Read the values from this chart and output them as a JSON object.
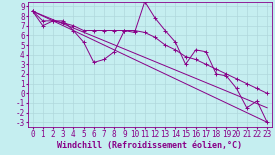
{
  "xlabel": "Windchill (Refroidissement éolien,°C)",
  "background_color": "#c5eef0",
  "grid_color": "#b0d8dc",
  "line_color": "#880088",
  "xlim": [
    -0.5,
    23.5
  ],
  "ylim": [
    -3.5,
    9.5
  ],
  "xticks": [
    0,
    1,
    2,
    3,
    4,
    5,
    6,
    7,
    8,
    9,
    10,
    11,
    12,
    13,
    14,
    15,
    16,
    17,
    18,
    19,
    20,
    21,
    22,
    23
  ],
  "yticks": [
    -3,
    -2,
    -1,
    0,
    1,
    2,
    3,
    4,
    5,
    6,
    7,
    8,
    9
  ],
  "line1_x": [
    0,
    1,
    2,
    3,
    4,
    5,
    6,
    7,
    8,
    9,
    10,
    11,
    12,
    13,
    14,
    15,
    16,
    17,
    18,
    19,
    20,
    21,
    22,
    23
  ],
  "line1_y": [
    8.5,
    7.0,
    7.5,
    7.5,
    6.5,
    5.3,
    3.2,
    3.5,
    4.3,
    6.5,
    6.3,
    9.5,
    7.8,
    6.5,
    5.3,
    3.0,
    4.5,
    4.3,
    2.0,
    1.8,
    0.5,
    -1.5,
    -0.8,
    -3.0
  ],
  "line2_x": [
    0,
    1,
    2,
    3,
    4,
    5,
    6,
    7,
    8,
    9,
    10,
    11,
    12,
    13,
    14,
    15,
    16,
    17,
    18,
    19,
    20,
    21,
    22,
    23
  ],
  "line2_y": [
    8.5,
    7.5,
    7.5,
    7.3,
    7.0,
    6.5,
    6.5,
    6.5,
    6.5,
    6.5,
    6.5,
    6.3,
    5.8,
    5.0,
    4.5,
    3.8,
    3.5,
    3.0,
    2.5,
    2.0,
    1.5,
    1.0,
    0.5,
    0.0
  ],
  "line3_x": [
    0,
    23
  ],
  "line3_y": [
    8.5,
    -3.0
  ],
  "line4_x": [
    0,
    23
  ],
  "line4_y": [
    8.5,
    -1.5
  ],
  "font_size": 6,
  "tick_font_size": 5.5,
  "marker": "+"
}
